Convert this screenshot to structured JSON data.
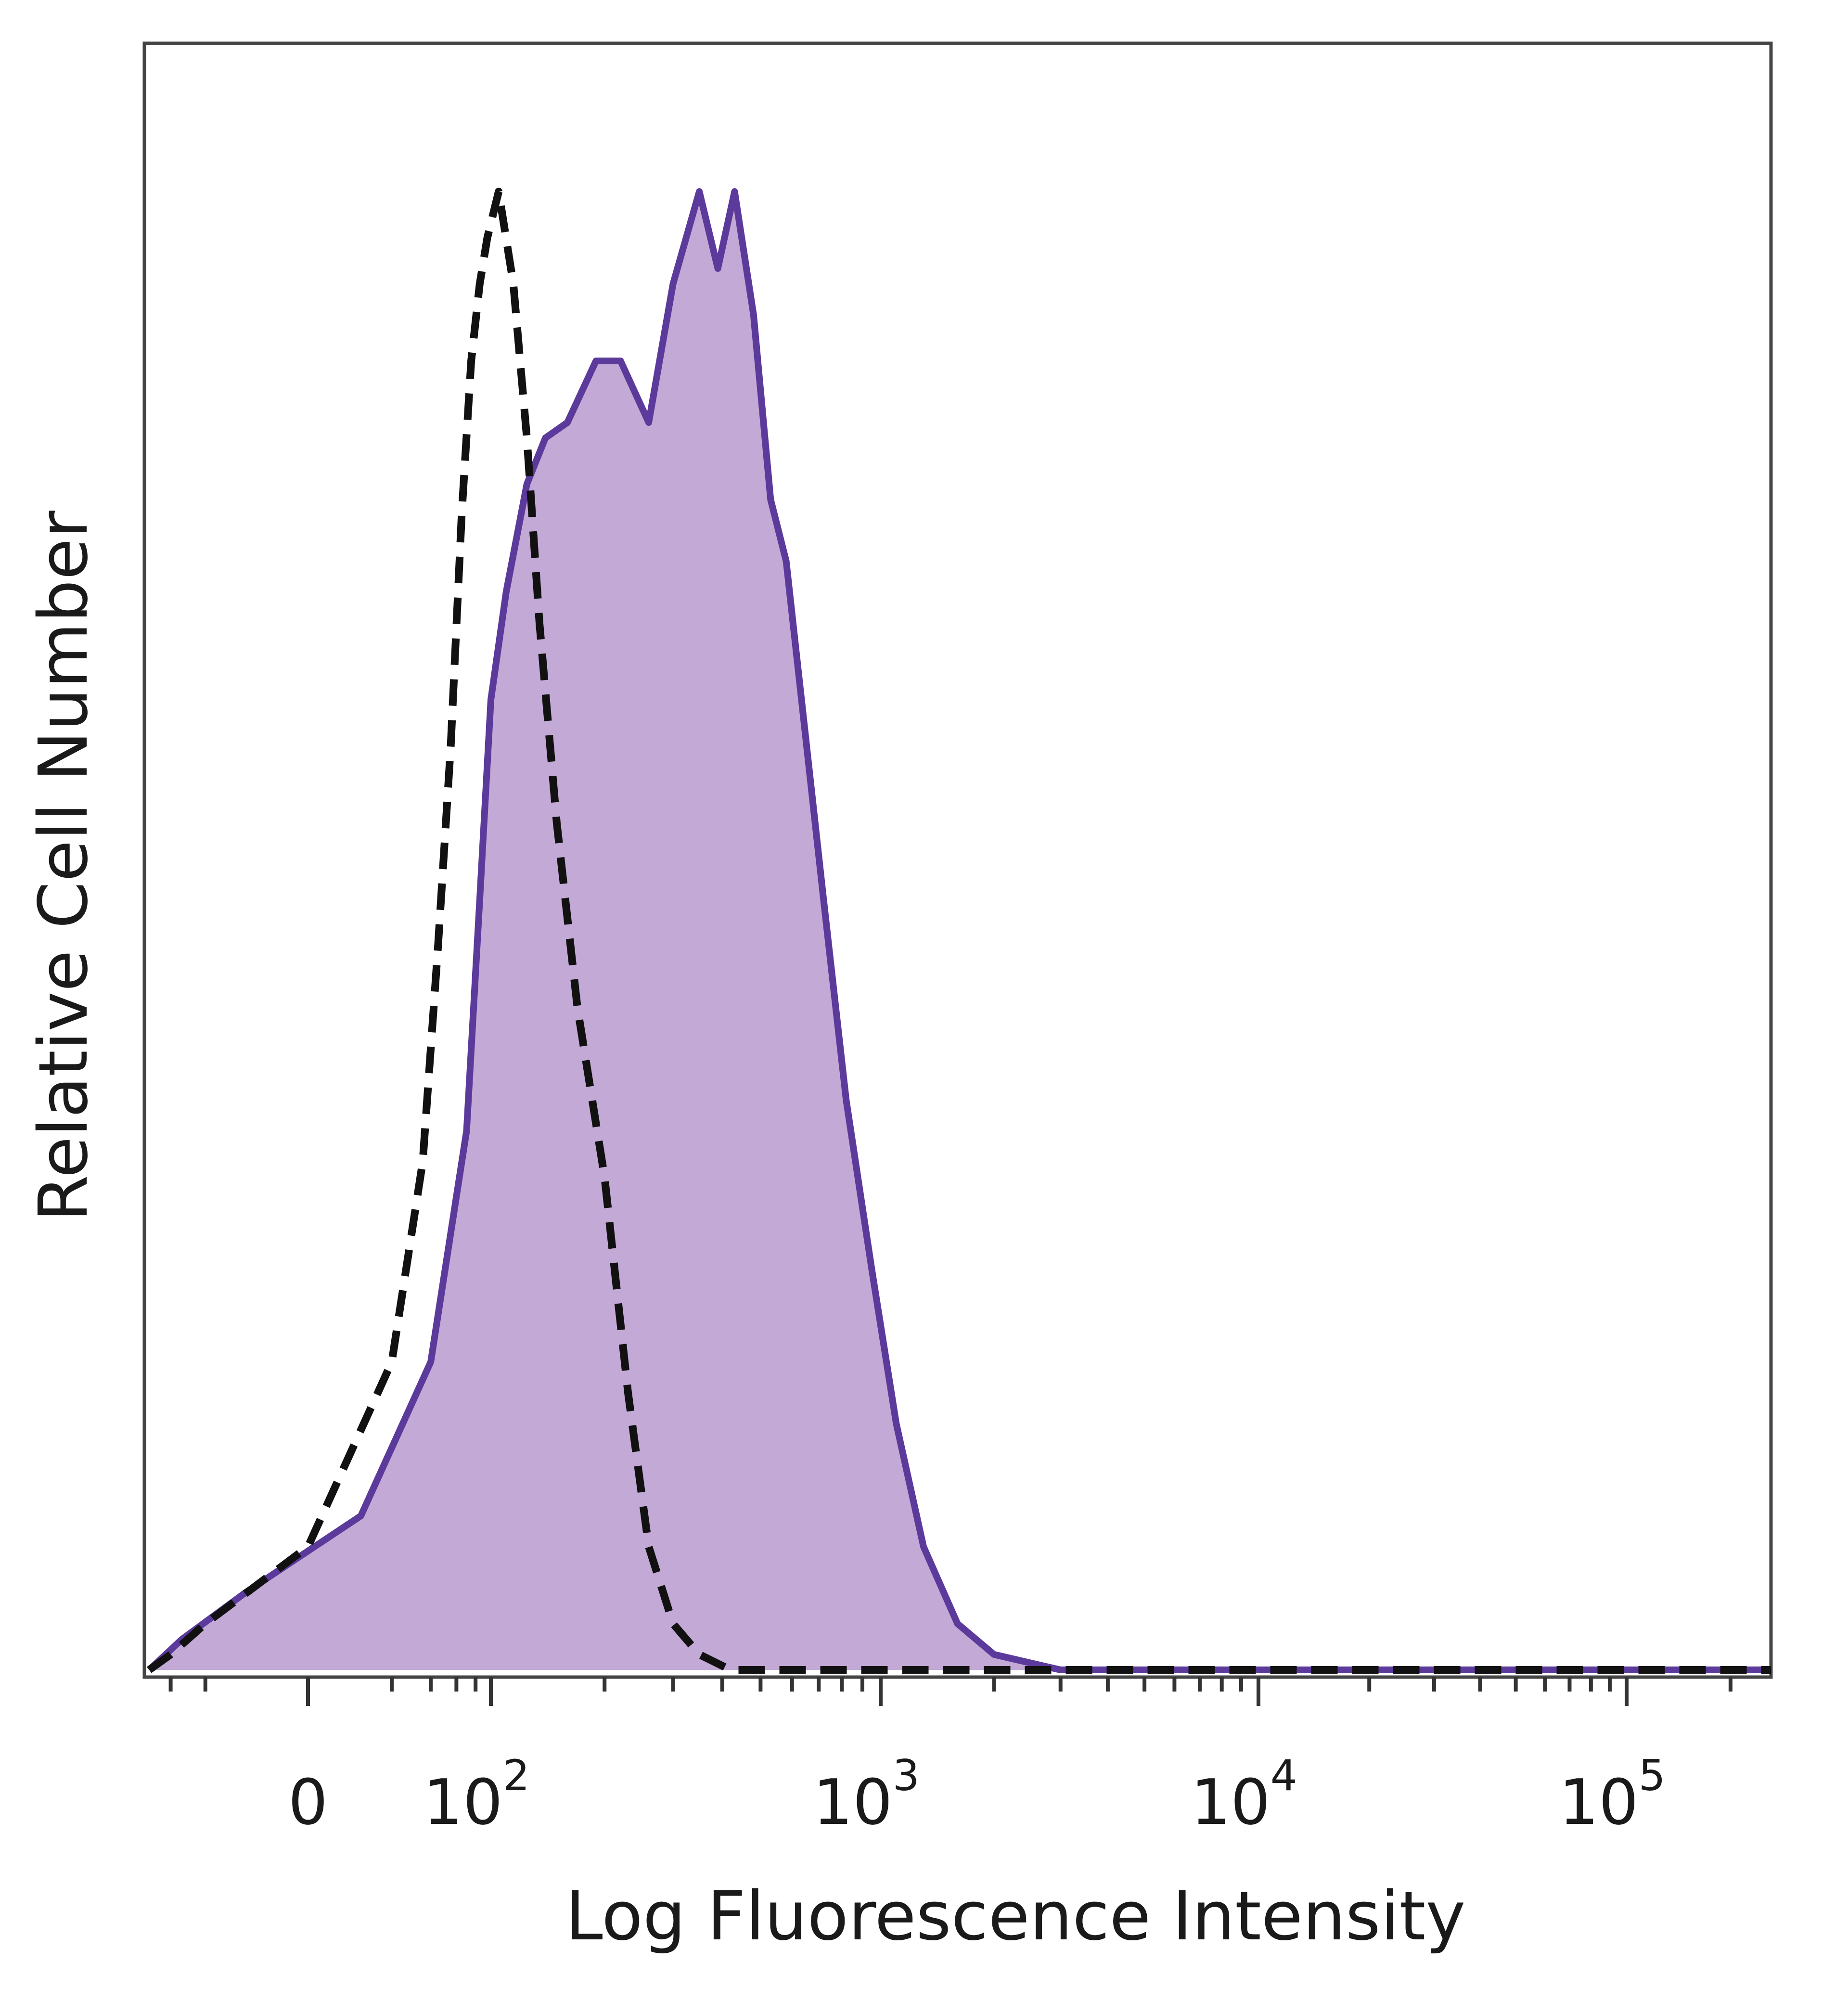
{
  "chart_data": {
    "type": "area",
    "title": "",
    "xlabel": "Log Fluorescence Intensity",
    "ylabel": "Relative Cell Number",
    "x_scale": "biexponential",
    "x_ticks": [
      {
        "value": 0,
        "base": "0",
        "exp": ""
      },
      {
        "value": 100,
        "base": "10",
        "exp": "2"
      },
      {
        "value": 1000,
        "base": "10",
        "exp": "3"
      },
      {
        "value": 10000,
        "base": "10",
        "exp": "4"
      },
      {
        "value": 100000,
        "base": "10",
        "exp": "5"
      }
    ],
    "xlim": [
      -150,
      262000
    ],
    "ylim": [
      0,
      1.0
    ],
    "grid": false,
    "legend": "none",
    "series": [
      {
        "style": "dashed",
        "color": "#111111",
        "points": [
          [
            -150,
            0.0
          ],
          [
            -100,
            0.01
          ],
          [
            -50,
            0.03
          ],
          [
            0,
            0.08
          ],
          [
            20,
            0.2
          ],
          [
            35,
            0.33
          ],
          [
            45,
            0.47
          ],
          [
            55,
            0.6
          ],
          [
            65,
            0.75
          ],
          [
            75,
            0.85
          ],
          [
            85,
            0.9
          ],
          [
            95,
            0.93
          ],
          [
            105,
            0.96
          ],
          [
            115,
            0.9
          ],
          [
            125,
            0.8
          ],
          [
            135,
            0.68
          ],
          [
            150,
            0.55
          ],
          [
            170,
            0.43
          ],
          [
            200,
            0.32
          ],
          [
            230,
            0.18
          ],
          [
            260,
            0.08
          ],
          [
            300,
            0.03
          ],
          [
            350,
            0.01
          ],
          [
            420,
            0.0
          ],
          [
            1000,
            0.0
          ],
          [
            262000,
            0.0
          ]
        ]
      },
      {
        "style": "filled",
        "color": "#5b3a9b",
        "fill": "#c3a9d6",
        "points": [
          [
            -150,
            0.0
          ],
          [
            -80,
            0.02
          ],
          [
            -20,
            0.05
          ],
          [
            10,
            0.1
          ],
          [
            40,
            0.2
          ],
          [
            70,
            0.35
          ],
          [
            85,
            0.5
          ],
          [
            100,
            0.63
          ],
          [
            110,
            0.7
          ],
          [
            125,
            0.77
          ],
          [
            140,
            0.8
          ],
          [
            160,
            0.81
          ],
          [
            190,
            0.85
          ],
          [
            220,
            0.85
          ],
          [
            260,
            0.81
          ],
          [
            300,
            0.9
          ],
          [
            350,
            0.96
          ],
          [
            390,
            0.91
          ],
          [
            430,
            0.96
          ],
          [
            480,
            0.88
          ],
          [
            530,
            0.76
          ],
          [
            580,
            0.72
          ],
          [
            640,
            0.62
          ],
          [
            720,
            0.5
          ],
          [
            820,
            0.37
          ],
          [
            950,
            0.26
          ],
          [
            1100,
            0.16
          ],
          [
            1300,
            0.08
          ],
          [
            1600,
            0.03
          ],
          [
            2000,
            0.01
          ],
          [
            3000,
            0.0
          ],
          [
            262000,
            0.0
          ]
        ]
      }
    ]
  }
}
